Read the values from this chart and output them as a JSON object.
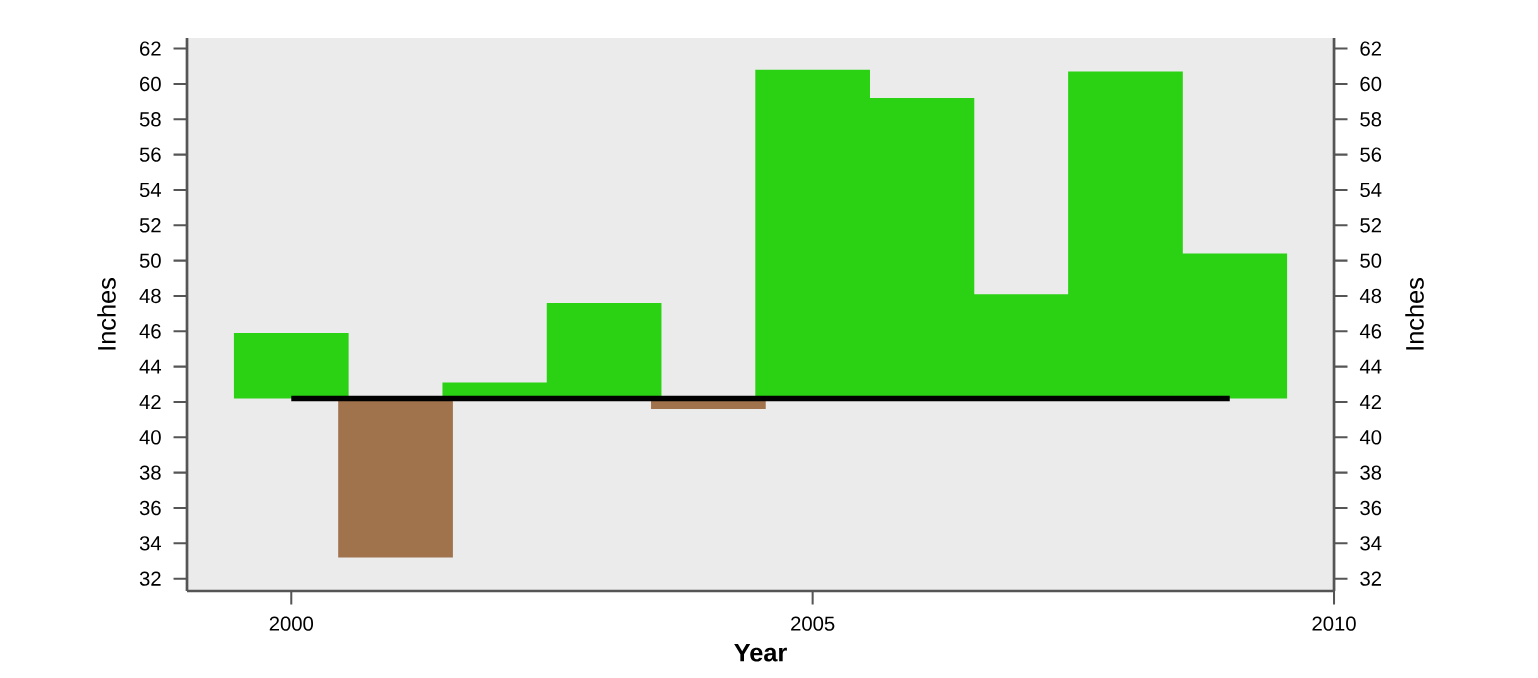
{
  "chart_data": {
    "type": "bar",
    "xlabel": "Year",
    "ylabel": "Inches",
    "y2label": "Inches",
    "xlim": [
      1999,
      2010
    ],
    "xticks": [
      2000,
      2005,
      2010
    ],
    "ylim": [
      31.3,
      62.6
    ],
    "yticks": [
      32,
      34,
      36,
      38,
      40,
      42,
      44,
      46,
      48,
      50,
      52,
      54,
      56,
      58,
      60,
      62
    ],
    "y2lim": [
      31.3,
      62.6
    ],
    "y2ticks": [
      32,
      34,
      36,
      38,
      40,
      42,
      44,
      46,
      48,
      50,
      52,
      54,
      56,
      58,
      60,
      62
    ],
    "series": [
      {
        "x": [
          2000,
          2001,
          2002,
          2003,
          2004,
          2005,
          2006,
          2007,
          2008,
          2009
        ],
        "base": [
          42.2,
          42.2,
          42.2,
          42.2,
          42.2,
          42.2,
          42.2,
          42.2,
          42.2,
          42.2
        ],
        "values": [
          3.7,
          -9.0,
          0.9,
          5.4,
          -0.6,
          18.6,
          17.0,
          5.9,
          18.5,
          8.2
        ],
        "colors": [
          "#2bd214",
          "#a0734c",
          "#2bd214",
          "#2bd214",
          "#a0734c",
          "#2bd214",
          "#2bd214",
          "#2bd214",
          "#2bd214",
          "#2bd214"
        ]
      },
      {
        "type": "line",
        "x": [
          2000,
          2009
        ],
        "values": [
          42.2,
          42.2
        ],
        "color": "#000000"
      }
    ]
  }
}
